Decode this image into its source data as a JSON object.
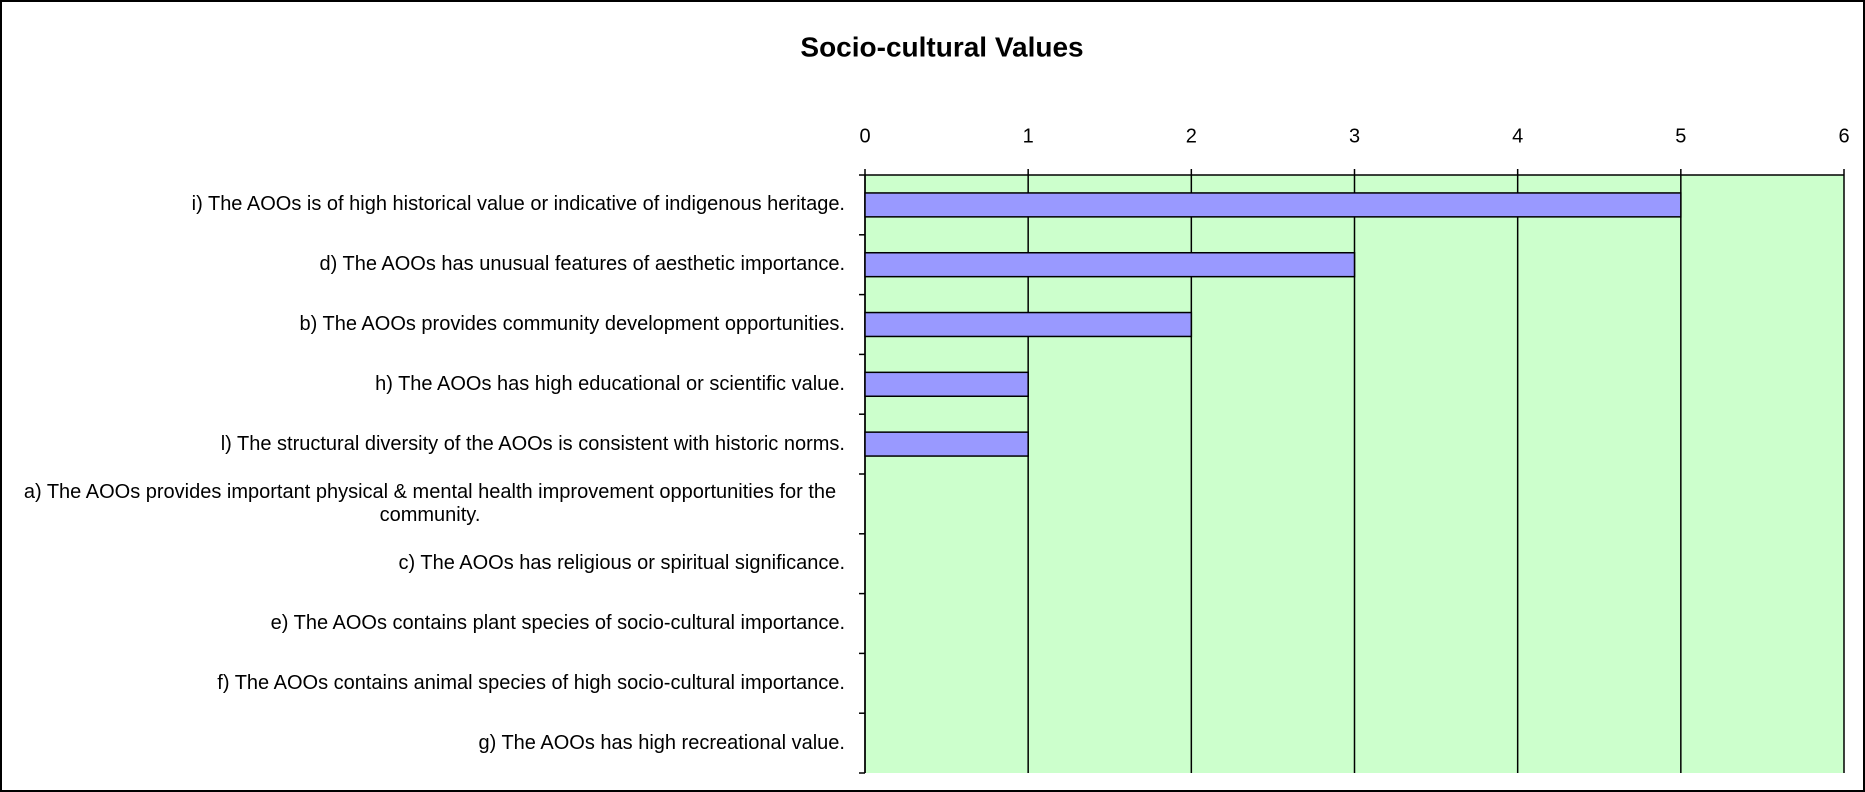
{
  "chart_data": {
    "type": "bar",
    "orientation": "horizontal",
    "title": "Socio-cultural Values",
    "categories": [
      "i) The AOOs is of high historical value or indicative of indigenous heritage.",
      "d) The AOOs has unusual features of aesthetic importance.",
      "b) The AOOs provides community development opportunities.",
      "h) The AOOs has high educational or scientific value.",
      "l) The structural diversity of the AOOs is consistent with historic norms.",
      "a) The AOOs provides important physical & mental health improvement opportunities for the community.",
      "c) The AOOs has religious or spiritual significance.",
      "e) The AOOs contains plant species of socio-cultural importance.",
      "f) The AOOs contains animal species of high socio-cultural importance.",
      "g) The AOOs has high recreational value."
    ],
    "values": [
      5,
      3,
      2,
      1,
      1,
      0,
      0,
      0,
      0,
      0
    ],
    "color": "#9999ff",
    "plot_background": "#ccffcc",
    "xlim": [
      0,
      6
    ],
    "xticks": [
      0,
      1,
      2,
      3,
      4,
      5,
      6
    ],
    "grid": true
  }
}
